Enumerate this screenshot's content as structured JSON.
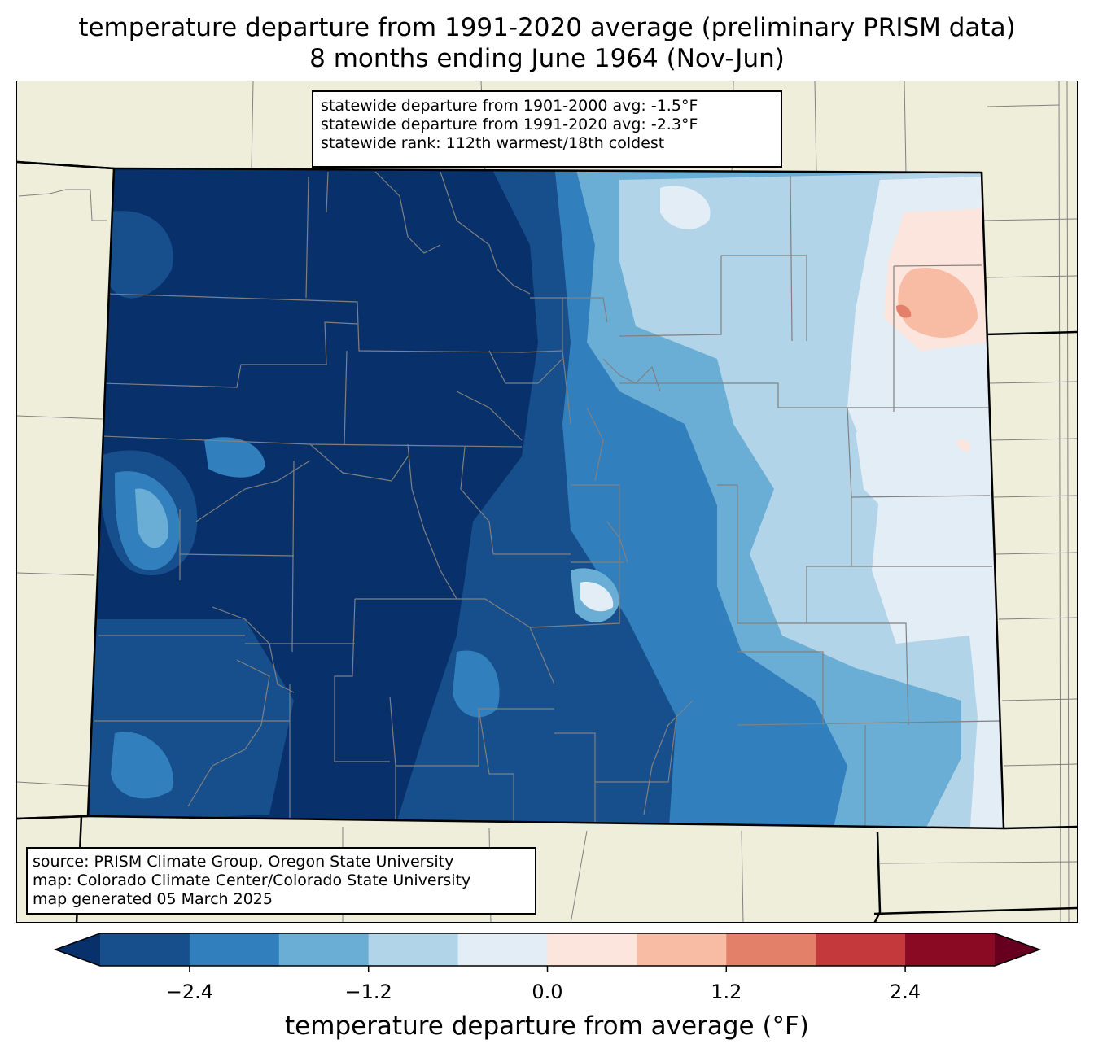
{
  "title_line1": "temperature departure from 1991-2020 average (preliminary PRISM data)",
  "title_line2": "8 months ending June 1964 (Nov-Jun)",
  "stats": {
    "line1": "statewide departure from 1901-2000 avg: -1.5°F",
    "line2": "statewide departure from 1991-2020 avg: -2.3°F",
    "line3": "statewide rank: 112th warmest/18th coldest"
  },
  "source": {
    "line1": "source: PRISM Climate Group, Oregon State University",
    "line2": "map: Colorado Climate Center/Colorado State University",
    "line3": "map generated 05 March 2025"
  },
  "colorbar": {
    "label": "temperature departure from average (°F)",
    "ticks": [
      "−2.4",
      "−1.2",
      "0.0",
      "1.2",
      "2.4"
    ],
    "tick_values": [
      -2.4,
      -1.2,
      0.0,
      1.2,
      2.4
    ],
    "range": [
      -3.0,
      3.0
    ],
    "colors": [
      "#08306b",
      "#164f8c",
      "#3180bd",
      "#6aaed6",
      "#b2d4e8",
      "#e3edf6",
      "#fbe5dc",
      "#f8bca4",
      "#e2806a",
      "#c43a3c",
      "#8a0a23",
      "#67001f"
    ]
  },
  "colors": {
    "land": "#efeedb",
    "state_border": "#000000",
    "county_line": "#808080"
  }
}
